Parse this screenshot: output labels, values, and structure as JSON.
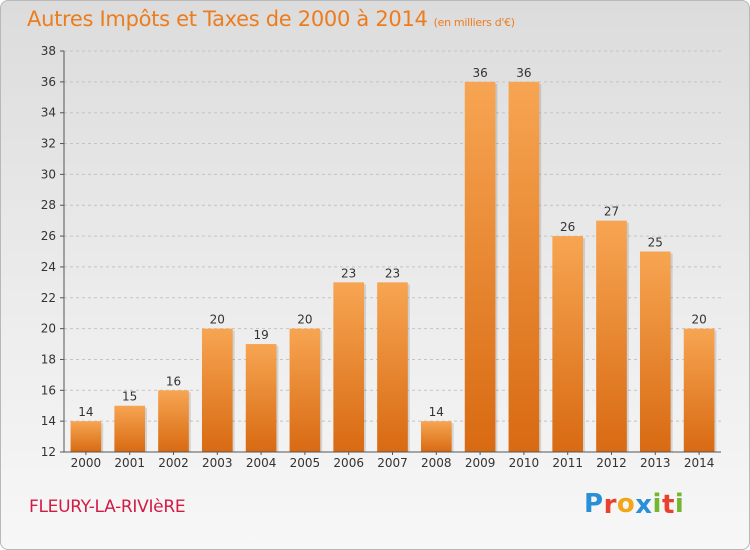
{
  "header": {
    "title": "Autres Impôts et Taxes de 2000 à 2014",
    "unit": "(en milliers d'€)"
  },
  "footer": {
    "commune": "FLEURY-LA-RIVIèRE",
    "logo_letters": [
      "P",
      "r",
      "o",
      "x",
      "i",
      "t",
      "i"
    ],
    "logo_colors": [
      "#2a8fd6",
      "#e8412c",
      "#f2a516",
      "#2a8fd6",
      "#74b72e",
      "#e8412c",
      "#74b72e"
    ]
  },
  "colors": {
    "bar_light": "#f7a552",
    "bar_dark": "#d86a12",
    "title": "#ec7d1e",
    "commune": "#d21b45"
  },
  "chart_data": {
    "type": "bar",
    "categories": [
      "2000",
      "2001",
      "2002",
      "2003",
      "2004",
      "2005",
      "2006",
      "2007",
      "2008",
      "2009",
      "2010",
      "2011",
      "2012",
      "2013",
      "2014"
    ],
    "values": [
      14,
      15,
      16,
      20,
      19,
      20,
      23,
      23,
      14,
      36,
      36,
      26,
      27,
      25,
      20
    ],
    "ylim": [
      12,
      38
    ],
    "yticks": [
      12,
      14,
      16,
      18,
      20,
      22,
      24,
      26,
      28,
      30,
      32,
      34,
      36,
      38
    ],
    "grid": true
  }
}
